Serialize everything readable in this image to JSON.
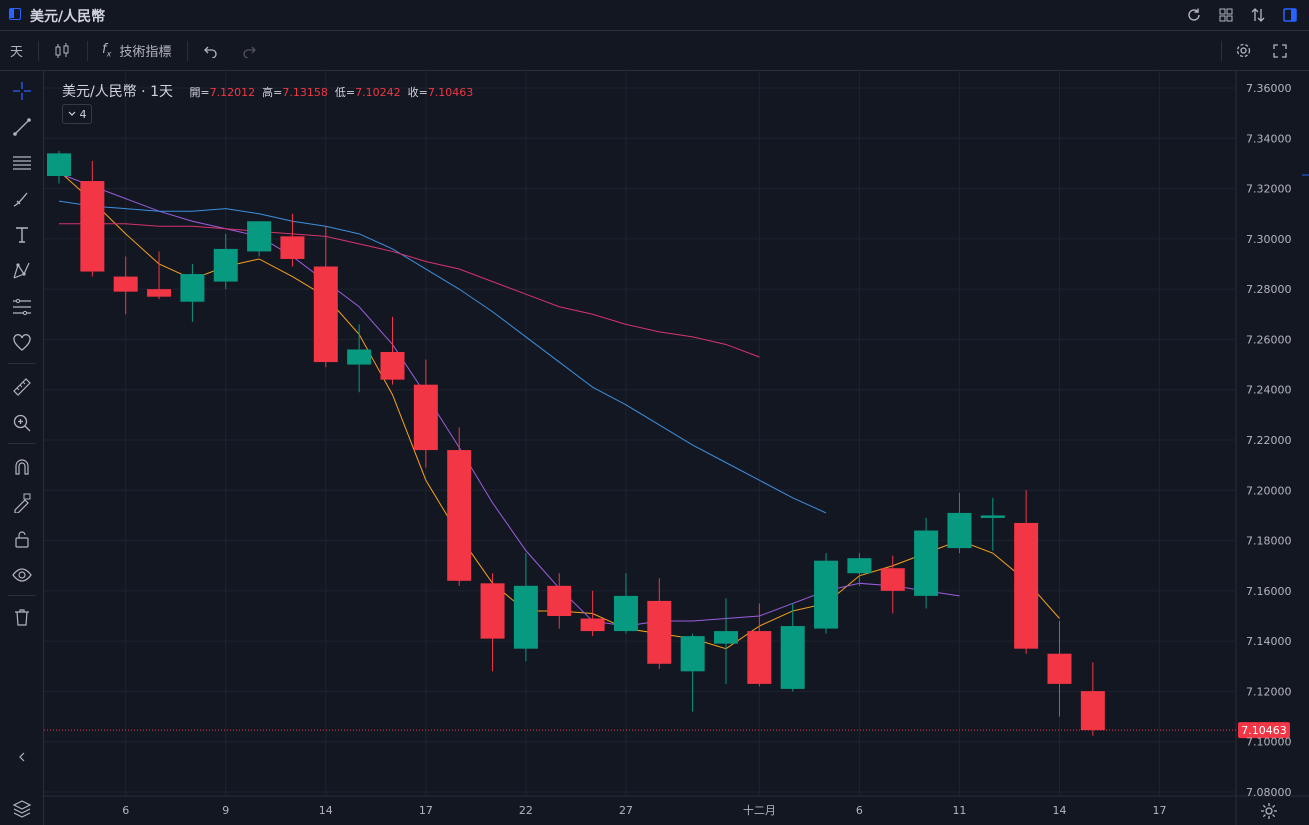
{
  "window": {
    "title": "美元/人民幣"
  },
  "toolbar": {
    "interval": "天",
    "indicators_label": "技術指標"
  },
  "legend": {
    "symbol": "美元/人民幣 · 1天",
    "open_label": "開=",
    "open": "7.12012",
    "high_label": "高=",
    "high": "7.13158",
    "low_label": "低=",
    "low": "7.10242",
    "close_label": "收=",
    "close": "7.10463",
    "indicator_count": "4"
  },
  "colors": {
    "up": "#089981",
    "down": "#f23645",
    "ma_orange": "#f7a21b",
    "ma_purple": "#9c5ee0",
    "ma_blue": "#3d8fdf",
    "ma_pink": "#d6336c",
    "background": "#131722",
    "grid": "#1f2330"
  },
  "chart_data": {
    "type": "candlestick",
    "title": "美元/人民幣 · 1天",
    "ylim": [
      7.08,
      7.365
    ],
    "y_ticks": [
      "7.36000",
      "7.34000",
      "7.32000",
      "7.30000",
      "7.28000",
      "7.26000",
      "7.24000",
      "7.22000",
      "7.20000",
      "7.18000",
      "7.16000",
      "7.14000",
      "7.12000",
      "7.10000",
      "7.08000"
    ],
    "y_tick_values": [
      7.36,
      7.34,
      7.32,
      7.3,
      7.28,
      7.26,
      7.24,
      7.22,
      7.2,
      7.18,
      7.16,
      7.14,
      7.12,
      7.1,
      7.08
    ],
    "x_ticks": [
      {
        "label": "6",
        "index": 2
      },
      {
        "label": "9",
        "index": 5
      },
      {
        "label": "14",
        "index": 8
      },
      {
        "label": "17",
        "index": 11
      },
      {
        "label": "22",
        "index": 14
      },
      {
        "label": "27",
        "index": 17
      },
      {
        "label": "十二月",
        "index": 21
      },
      {
        "label": "6",
        "index": 24
      },
      {
        "label": "11",
        "index": 27
      },
      {
        "label": "14",
        "index": 30
      },
      {
        "label": "17",
        "index": 33
      }
    ],
    "last_price": "7.10463",
    "last_price_value": 7.10463,
    "candles": [
      {
        "o": 7.325,
        "h": 7.335,
        "l": 7.322,
        "c": 7.334
      },
      {
        "o": 7.323,
        "h": 7.331,
        "l": 7.285,
        "c": 7.287
      },
      {
        "o": 7.285,
        "h": 7.293,
        "l": 7.27,
        "c": 7.279
      },
      {
        "o": 7.28,
        "h": 7.295,
        "l": 7.276,
        "c": 7.277
      },
      {
        "o": 7.275,
        "h": 7.29,
        "l": 7.267,
        "c": 7.286
      },
      {
        "o": 7.283,
        "h": 7.302,
        "l": 7.28,
        "c": 7.296
      },
      {
        "o": 7.295,
        "h": 7.307,
        "l": 7.293,
        "c": 7.307
      },
      {
        "o": 7.301,
        "h": 7.31,
        "l": 7.289,
        "c": 7.292
      },
      {
        "o": 7.289,
        "h": 7.305,
        "l": 7.249,
        "c": 7.251
      },
      {
        "o": 7.25,
        "h": 7.266,
        "l": 7.239,
        "c": 7.256
      },
      {
        "o": 7.255,
        "h": 7.269,
        "l": 7.242,
        "c": 7.244
      },
      {
        "o": 7.242,
        "h": 7.252,
        "l": 7.209,
        "c": 7.216
      },
      {
        "o": 7.216,
        "h": 7.225,
        "l": 7.162,
        "c": 7.164
      },
      {
        "o": 7.163,
        "h": 7.167,
        "l": 7.128,
        "c": 7.141
      },
      {
        "o": 7.137,
        "h": 7.175,
        "l": 7.132,
        "c": 7.162
      },
      {
        "o": 7.162,
        "h": 7.167,
        "l": 7.145,
        "c": 7.15
      },
      {
        "o": 7.149,
        "h": 7.16,
        "l": 7.142,
        "c": 7.144
      },
      {
        "o": 7.144,
        "h": 7.167,
        "l": 7.143,
        "c": 7.158
      },
      {
        "o": 7.156,
        "h": 7.165,
        "l": 7.129,
        "c": 7.131
      },
      {
        "o": 7.128,
        "h": 7.143,
        "l": 7.112,
        "c": 7.142
      },
      {
        "o": 7.139,
        "h": 7.157,
        "l": 7.123,
        "c": 7.144
      },
      {
        "o": 7.144,
        "h": 7.155,
        "l": 7.122,
        "c": 7.123
      },
      {
        "o": 7.121,
        "h": 7.155,
        "l": 7.12,
        "c": 7.146
      },
      {
        "o": 7.145,
        "h": 7.175,
        "l": 7.143,
        "c": 7.172
      },
      {
        "o": 7.167,
        "h": 7.175,
        "l": 7.162,
        "c": 7.173
      },
      {
        "o": 7.169,
        "h": 7.174,
        "l": 7.151,
        "c": 7.16
      },
      {
        "o": 7.158,
        "h": 7.189,
        "l": 7.153,
        "c": 7.184
      },
      {
        "o": 7.177,
        "h": 7.199,
        "l": 7.175,
        "c": 7.191
      },
      {
        "o": 7.189,
        "h": 7.197,
        "l": 7.176,
        "c": 7.19
      },
      {
        "o": 7.187,
        "h": 7.2,
        "l": 7.135,
        "c": 7.137
      },
      {
        "o": 7.135,
        "h": 7.148,
        "l": 7.11,
        "c": 7.123
      },
      {
        "o": 7.12012,
        "h": 7.13158,
        "l": 7.10242,
        "c": 7.10463
      }
    ],
    "series": [
      {
        "color": "#f7a21b",
        "values": [
          7.327,
          7.315,
          7.302,
          7.29,
          7.284,
          7.289,
          7.292,
          7.285,
          7.277,
          7.262,
          7.238,
          7.204,
          7.182,
          7.163,
          7.152,
          7.152,
          7.151,
          7.145,
          7.143,
          7.141,
          7.137,
          7.146,
          7.152,
          7.155,
          7.166,
          7.17,
          7.175,
          7.18,
          7.175,
          7.164,
          7.149
        ]
      },
      {
        "color": "#9c5ee0",
        "values": [
          7.326,
          7.321,
          7.316,
          7.311,
          7.307,
          7.304,
          7.301,
          7.293,
          7.283,
          7.273,
          7.258,
          7.238,
          7.217,
          7.195,
          7.176,
          7.161,
          7.148,
          7.146,
          7.148,
          7.148,
          7.149,
          7.15,
          7.155,
          7.16,
          7.163,
          7.162,
          7.16,
          7.158
        ]
      },
      {
        "color": "#3d8fdf",
        "values": [
          7.315,
          7.313,
          7.312,
          7.311,
          7.311,
          7.312,
          7.31,
          7.307,
          7.305,
          7.302,
          7.296,
          7.288,
          7.28,
          7.271,
          7.261,
          7.251,
          7.241,
          7.234,
          7.226,
          7.218,
          7.211,
          7.204,
          7.197,
          7.191
        ]
      },
      {
        "color": "#d6336c",
        "values": [
          7.306,
          7.306,
          7.306,
          7.305,
          7.305,
          7.304,
          7.303,
          7.302,
          7.301,
          7.298,
          7.295,
          7.291,
          7.288,
          7.283,
          7.278,
          7.273,
          7.27,
          7.266,
          7.263,
          7.261,
          7.258,
          7.253
        ]
      }
    ]
  }
}
